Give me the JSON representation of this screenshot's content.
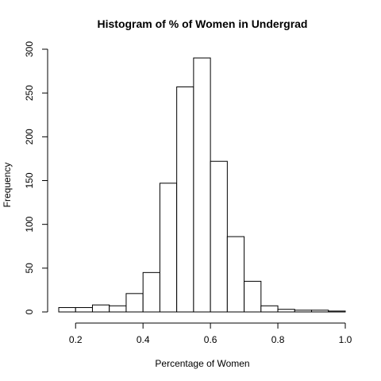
{
  "chart_data": {
    "type": "bar",
    "title": "Histogram of % of Women in Undergrad",
    "xlabel": "Percentage of Women",
    "ylabel": "Frequency",
    "xlim": [
      0.15,
      1.0
    ],
    "ylim": [
      0,
      300
    ],
    "x_ticks": [
      "0.2",
      "0.4",
      "0.6",
      "0.8",
      "1.0"
    ],
    "y_ticks": [
      "0",
      "50",
      "100",
      "150",
      "200",
      "250",
      "300"
    ],
    "bin_edges": [
      0.15,
      0.2,
      0.25,
      0.3,
      0.35,
      0.4,
      0.45,
      0.5,
      0.55,
      0.6,
      0.65,
      0.7,
      0.75,
      0.8,
      0.85,
      0.9,
      0.95,
      1.0
    ],
    "values": [
      5,
      5,
      8,
      7,
      21,
      45,
      147,
      257,
      290,
      172,
      86,
      35,
      7,
      3,
      2,
      2,
      1
    ],
    "grid": false,
    "bar_fill": "#ffffff",
    "bar_stroke": "#000000"
  }
}
